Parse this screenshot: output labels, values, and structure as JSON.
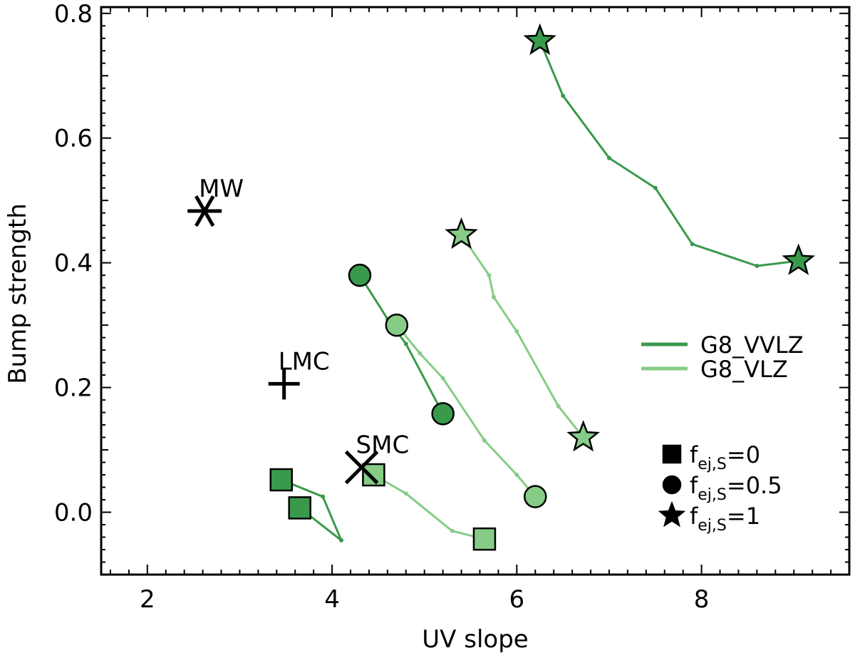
{
  "chart_data": {
    "type": "scatter",
    "xlabel": "UV slope",
    "ylabel": "Bump strength",
    "xlim": [
      1.5,
      9.6
    ],
    "ylim": [
      -0.1,
      0.81
    ],
    "x_ticks": [
      "2",
      "4",
      "6",
      "8"
    ],
    "y_ticks": [
      "0.0",
      "0.2",
      "0.4",
      "0.6",
      "0.8"
    ],
    "grid": false,
    "legend_position": "right",
    "colors": {
      "G8_VVLZ": "#3a9a4c",
      "G8_VLZ": "#86cc86",
      "reference": "#000000"
    },
    "series": [
      {
        "name": "G8_VVLZ",
        "tracks": [
          {
            "marker": "square",
            "points": [
              [
                3.45,
                0.052
              ],
              [
                3.9,
                0.025
              ],
              [
                4.1,
                -0.045
              ],
              [
                3.65,
                0.007
              ]
            ],
            "endpoints": [
              [
                3.45,
                0.052
              ],
              [
                3.65,
                0.007
              ]
            ]
          },
          {
            "marker": "circle",
            "points": [
              [
                4.3,
                0.38
              ],
              [
                4.6,
                0.31
              ],
              [
                4.8,
                0.27
              ],
              [
                5.2,
                0.158
              ]
            ],
            "endpoints": [
              [
                4.3,
                0.38
              ],
              [
                5.2,
                0.158
              ]
            ]
          },
          {
            "marker": "star",
            "points": [
              [
                6.25,
                0.756
              ],
              [
                6.5,
                0.668
              ],
              [
                7.0,
                0.568
              ],
              [
                7.5,
                0.52
              ],
              [
                7.9,
                0.43
              ],
              [
                8.6,
                0.395
              ],
              [
                9.05,
                0.403
              ]
            ],
            "endpoints": [
              [
                6.25,
                0.756
              ],
              [
                9.05,
                0.403
              ]
            ]
          }
        ]
      },
      {
        "name": "G8_VLZ",
        "tracks": [
          {
            "marker": "square",
            "points": [
              [
                4.45,
                0.06
              ],
              [
                4.8,
                0.03
              ],
              [
                5.3,
                -0.03
              ],
              [
                5.65,
                -0.043
              ]
            ],
            "endpoints": [
              [
                4.45,
                0.06
              ],
              [
                5.65,
                -0.043
              ]
            ]
          },
          {
            "marker": "circle",
            "points": [
              [
                4.7,
                0.3
              ],
              [
                4.95,
                0.255
              ],
              [
                5.2,
                0.215
              ],
              [
                5.65,
                0.115
              ],
              [
                6.0,
                0.06
              ],
              [
                6.2,
                0.025
              ]
            ],
            "endpoints": [
              [
                4.7,
                0.3
              ],
              [
                6.2,
                0.025
              ]
            ]
          },
          {
            "marker": "star",
            "points": [
              [
                5.4,
                0.445
              ],
              [
                5.7,
                0.38
              ],
              [
                5.75,
                0.345
              ],
              [
                6.0,
                0.29
              ],
              [
                6.45,
                0.17
              ],
              [
                6.72,
                0.12
              ]
            ],
            "endpoints": [
              [
                5.4,
                0.445
              ],
              [
                6.72,
                0.12
              ]
            ]
          }
        ]
      }
    ],
    "reference_points": [
      {
        "label": "MW",
        "marker": "asterisk",
        "x": 2.62,
        "y": 0.483
      },
      {
        "label": "LMC",
        "marker": "plus",
        "x": 3.48,
        "y": 0.206
      },
      {
        "label": "SMC",
        "marker": "cross",
        "x": 4.32,
        "y": 0.072
      }
    ],
    "legend": {
      "lines": [
        "G8_VVLZ",
        "G8_VLZ"
      ],
      "markers": [
        {
          "marker": "square",
          "label": "f",
          "sub": "ej,S",
          "suffix": "=0"
        },
        {
          "marker": "circle",
          "label": "f",
          "sub": "ej,S",
          "suffix": "=0.5"
        },
        {
          "marker": "star",
          "label": "f",
          "sub": "ej,S",
          "suffix": "=1"
        }
      ]
    }
  }
}
